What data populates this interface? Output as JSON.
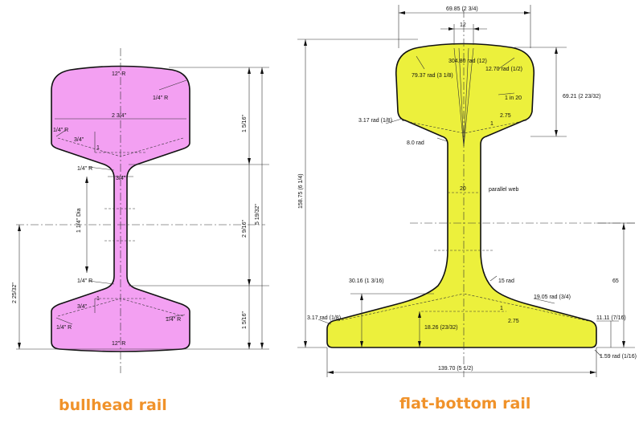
{
  "colors": {
    "bullhead_fill": "#f3a0f2",
    "flat_fill": "#ecf03c",
    "outline": "#111111",
    "caption": "#f0922a"
  },
  "captions": {
    "bullhead": "bullhead rail",
    "flat_bottom": "flat-bottom rail"
  },
  "bullhead_labels": {
    "head_r_top": "12\" R",
    "head_r_corner": "1/4\" R",
    "head_width": "2 3/4\"",
    "fillet_r_left": "1/4\" R",
    "slope_top": "3/4\"",
    "slope_one": "1",
    "web_r_upper": "1/4\" R",
    "web_thickness": "3/4\"",
    "hole_dia": "1 1/4\" Dia",
    "web_r_lower": "1/4\" R",
    "slope_bottom": "3/4\"",
    "slope_one_bottom": "1",
    "foot_r_left": "1/4\" R",
    "foot_r_right": "1/4\" R",
    "foot_r_bottom": "12\" R",
    "dim_head_depth": "1 5/16\"",
    "dim_web": "2 9/16\"",
    "dim_foot_depth": "1 5/16\"",
    "dim_total": "5 19/32\"",
    "dim_lower_left": "2 25/32\""
  },
  "flat_labels": {
    "head_width": "69.85 (2 3/4)",
    "top_offset": "12",
    "top_radius": "304.80 rad (12)",
    "left_radius": "79.37 rad (3 1/8)",
    "right_radius": "12.70 rad (1/2)",
    "head_depth": "69.21 (2 23/32)",
    "slope": "1 in 20",
    "slope_one": "1",
    "slope_val": "2.75",
    "underhead_r": "3.17 rad (1/8)",
    "fillet_r": "8.0 rad",
    "total_height": "158.75 (6 1/4)",
    "web_thickness": "20",
    "parallel_web": "parallel web",
    "neck_height": "30.16 (1 3/16)",
    "web_fillet": "15 rad",
    "foot_radius": "19.05 rad (3/4)",
    "foot_slope_one": "1",
    "foot_slope_val": "2.75",
    "foot_height": "65",
    "foot_tip_r": "3.17 rad (1/8)",
    "foot_thickness_mid": "18.26 (23/32)",
    "foot_edge": "11.11 (7/16)",
    "foot_corner": "1.59 rad (1/16)",
    "foot_width": "139.70 (5 1/2)"
  }
}
